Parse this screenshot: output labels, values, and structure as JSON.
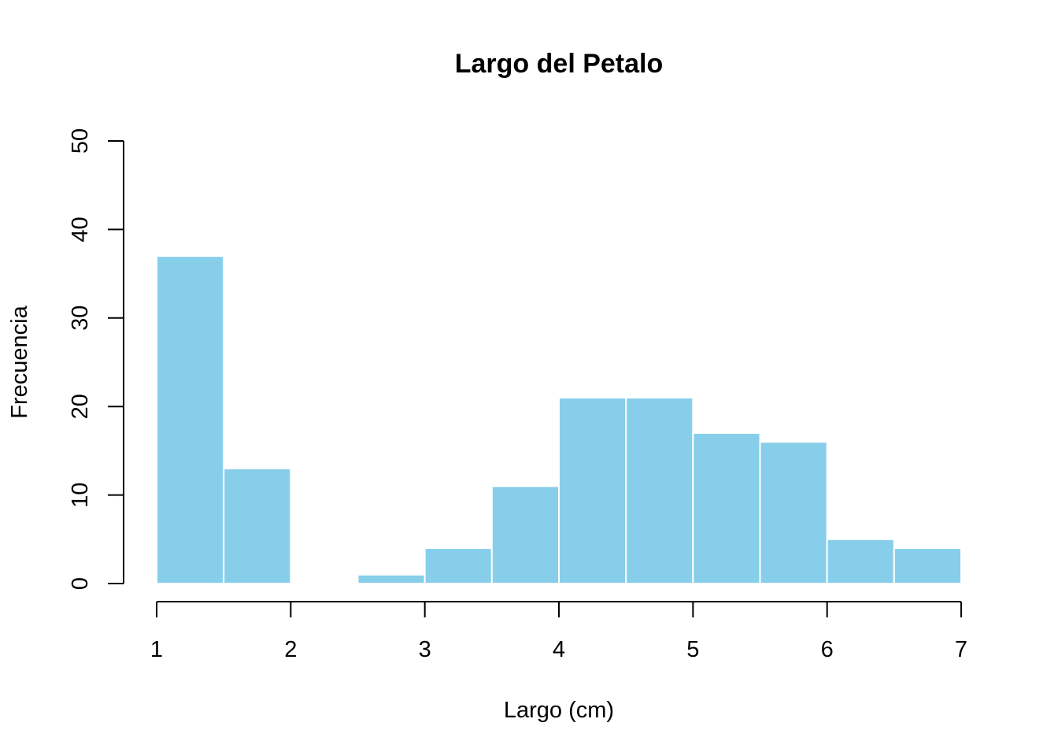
{
  "chart_data": {
    "type": "bar",
    "title": "Largo del Petalo",
    "xlabel": "Largo (cm)",
    "ylabel": "Frecuencia",
    "bins": [
      {
        "from": 1.0,
        "to": 1.5,
        "count": 37
      },
      {
        "from": 1.5,
        "to": 2.0,
        "count": 13
      },
      {
        "from": 2.0,
        "to": 2.5,
        "count": 0
      },
      {
        "from": 2.5,
        "to": 3.0,
        "count": 1
      },
      {
        "from": 3.0,
        "to": 3.5,
        "count": 4
      },
      {
        "from": 3.5,
        "to": 4.0,
        "count": 11
      },
      {
        "from": 4.0,
        "to": 4.5,
        "count": 21
      },
      {
        "from": 4.5,
        "to": 5.0,
        "count": 21
      },
      {
        "from": 5.0,
        "to": 5.5,
        "count": 17
      },
      {
        "from": 5.5,
        "to": 6.0,
        "count": 16
      },
      {
        "from": 6.0,
        "to": 6.5,
        "count": 5
      },
      {
        "from": 6.5,
        "to": 7.0,
        "count": 4
      }
    ],
    "xlim": [
      1,
      7
    ],
    "ylim": [
      0,
      50
    ],
    "x_ticks": [
      "1",
      "2",
      "3",
      "4",
      "5",
      "6",
      "7"
    ],
    "y_ticks": [
      "0",
      "10",
      "20",
      "30",
      "40",
      "50"
    ],
    "bar_color": "#87CEEB",
    "grid": false,
    "legend": "none"
  }
}
